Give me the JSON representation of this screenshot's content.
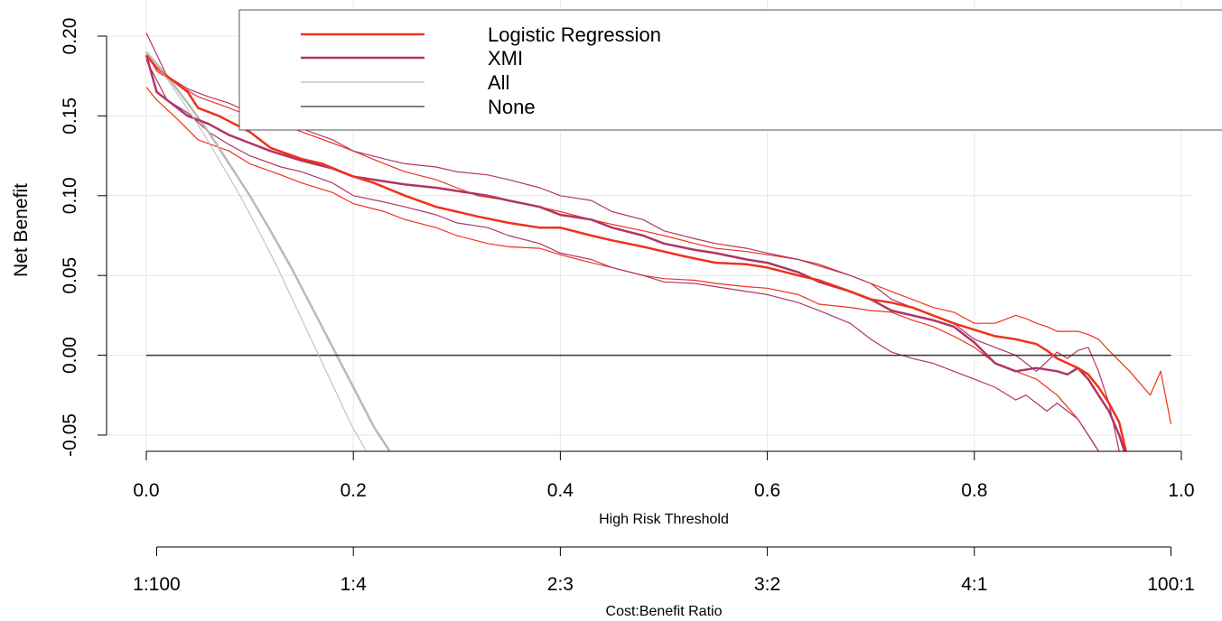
{
  "chart_data": {
    "type": "line",
    "title": "",
    "xlabel": "High Risk Threshold",
    "ylabel": "Net Benefit",
    "xlim": [
      0,
      1
    ],
    "ylim": [
      -0.05,
      0.2
    ],
    "x_ticks": [
      0.0,
      0.2,
      0.4,
      0.6,
      0.8,
      1.0
    ],
    "x_tick_labels": [
      "0.0",
      "0.2",
      "0.4",
      "0.6",
      "0.8",
      "1.0"
    ],
    "y_ticks": [
      0.2,
      0.15,
      0.1,
      0.05,
      0.0,
      -0.05
    ],
    "y_tick_labels": [
      "0.20",
      "0.15",
      "0.10",
      "0.05",
      "0.00",
      "-0.05"
    ],
    "grid": true,
    "legend_position": "top-right",
    "secondary_axis": {
      "label": "Cost:Benefit Ratio",
      "ticks": [
        0.01,
        0.2,
        0.4,
        0.6,
        0.8,
        0.99
      ],
      "tick_labels": [
        "1:100",
        "1:4",
        "2:3",
        "3:2",
        "4:1",
        "100:1"
      ]
    },
    "series": [
      {
        "name": "Logistic Regression",
        "color": "#f0311b",
        "width": 2.5,
        "x": [
          0.0,
          0.01,
          0.02,
          0.04,
          0.05,
          0.07,
          0.1,
          0.12,
          0.15,
          0.17,
          0.2,
          0.22,
          0.25,
          0.28,
          0.3,
          0.32,
          0.35,
          0.38,
          0.4,
          0.43,
          0.45,
          0.48,
          0.5,
          0.52,
          0.55,
          0.58,
          0.6,
          0.63,
          0.65,
          0.68,
          0.7,
          0.72,
          0.74,
          0.76,
          0.78,
          0.8,
          0.82,
          0.84,
          0.86,
          0.87,
          0.88,
          0.89,
          0.9,
          0.91,
          0.92,
          0.93,
          0.94,
          0.95
        ],
        "y": [
          0.188,
          0.18,
          0.175,
          0.165,
          0.155,
          0.15,
          0.14,
          0.13,
          0.123,
          0.12,
          0.112,
          0.108,
          0.1,
          0.093,
          0.09,
          0.087,
          0.083,
          0.08,
          0.08,
          0.075,
          0.072,
          0.068,
          0.065,
          0.062,
          0.058,
          0.057,
          0.055,
          0.05,
          0.047,
          0.04,
          0.035,
          0.033,
          0.03,
          0.025,
          0.02,
          0.016,
          0.012,
          0.01,
          0.007,
          0.003,
          -0.002,
          -0.005,
          -0.008,
          -0.012,
          -0.02,
          -0.03,
          -0.042,
          -0.07
        ]
      },
      {
        "name": "XMI",
        "color": "#b03566",
        "width": 2.5,
        "x": [
          0.0,
          0.01,
          0.02,
          0.04,
          0.06,
          0.08,
          0.1,
          0.12,
          0.15,
          0.18,
          0.2,
          0.23,
          0.25,
          0.28,
          0.3,
          0.33,
          0.35,
          0.38,
          0.4,
          0.43,
          0.45,
          0.48,
          0.5,
          0.53,
          0.55,
          0.58,
          0.6,
          0.63,
          0.65,
          0.68,
          0.7,
          0.72,
          0.74,
          0.76,
          0.78,
          0.8,
          0.82,
          0.84,
          0.86,
          0.88,
          0.89,
          0.9,
          0.91,
          0.92,
          0.93,
          0.94,
          0.95
        ],
        "y": [
          0.188,
          0.165,
          0.16,
          0.15,
          0.145,
          0.138,
          0.133,
          0.128,
          0.122,
          0.117,
          0.112,
          0.109,
          0.107,
          0.105,
          0.103,
          0.1,
          0.097,
          0.093,
          0.088,
          0.085,
          0.08,
          0.075,
          0.07,
          0.066,
          0.064,
          0.06,
          0.058,
          0.052,
          0.046,
          0.04,
          0.035,
          0.028,
          0.025,
          0.022,
          0.018,
          0.008,
          -0.005,
          -0.01,
          -0.008,
          -0.01,
          -0.012,
          -0.008,
          -0.015,
          -0.025,
          -0.035,
          -0.05,
          -0.07
        ]
      },
      {
        "name": "All",
        "color": "#b9b9b9",
        "width": 2.5,
        "x": [
          0.0,
          0.02,
          0.04,
          0.06,
          0.08,
          0.1,
          0.12,
          0.14,
          0.16,
          0.18,
          0.2,
          0.22,
          0.235
        ],
        "y": [
          0.19,
          0.175,
          0.158,
          0.14,
          0.12,
          0.1,
          0.078,
          0.055,
          0.03,
          0.005,
          -0.02,
          -0.045,
          -0.06
        ]
      },
      {
        "name": "None",
        "color": "#333333",
        "width": 1.5,
        "x": [
          0.0,
          0.99
        ],
        "y": [
          0.0,
          0.0
        ]
      }
    ],
    "confidence_bands": [
      {
        "color": "#f0311b",
        "x": [
          0.0,
          0.01,
          0.03,
          0.05,
          0.08,
          0.1,
          0.13,
          0.15,
          0.18,
          0.2,
          0.23,
          0.25,
          0.28,
          0.3,
          0.32,
          0.35,
          0.38,
          0.4,
          0.43,
          0.45,
          0.48,
          0.5,
          0.53,
          0.55,
          0.58,
          0.6,
          0.63,
          0.65,
          0.68,
          0.7,
          0.72,
          0.74,
          0.76,
          0.78,
          0.8,
          0.82,
          0.84,
          0.85,
          0.86,
          0.87,
          0.88,
          0.9,
          0.91,
          0.92,
          0.93,
          0.95,
          0.97,
          0.98,
          0.99
        ],
        "y": [
          0.19,
          0.178,
          0.17,
          0.162,
          0.155,
          0.15,
          0.145,
          0.14,
          0.133,
          0.128,
          0.12,
          0.115,
          0.11,
          0.105,
          0.1,
          0.097,
          0.093,
          0.09,
          0.085,
          0.082,
          0.078,
          0.075,
          0.07,
          0.067,
          0.065,
          0.063,
          0.06,
          0.057,
          0.05,
          0.045,
          0.04,
          0.035,
          0.03,
          0.027,
          0.02,
          0.02,
          0.025,
          0.023,
          0.02,
          0.018,
          0.015,
          0.015,
          0.013,
          0.01,
          0.003,
          -0.01,
          -0.025,
          -0.01,
          -0.043
        ]
      },
      {
        "color": "#f0311b",
        "x": [
          0.0,
          0.01,
          0.03,
          0.05,
          0.08,
          0.1,
          0.13,
          0.15,
          0.18,
          0.2,
          0.23,
          0.25,
          0.28,
          0.3,
          0.33,
          0.35,
          0.38,
          0.4,
          0.43,
          0.45,
          0.48,
          0.5,
          0.53,
          0.55,
          0.58,
          0.6,
          0.63,
          0.65,
          0.68,
          0.7,
          0.72,
          0.74,
          0.76,
          0.78,
          0.8,
          0.82,
          0.84,
          0.86,
          0.88,
          0.9,
          0.91,
          0.92
        ],
        "y": [
          0.168,
          0.16,
          0.148,
          0.135,
          0.128,
          0.12,
          0.113,
          0.108,
          0.102,
          0.095,
          0.09,
          0.085,
          0.08,
          0.075,
          0.07,
          0.068,
          0.067,
          0.063,
          0.058,
          0.055,
          0.05,
          0.048,
          0.047,
          0.045,
          0.043,
          0.042,
          0.038,
          0.032,
          0.03,
          0.028,
          0.027,
          0.022,
          0.018,
          0.012,
          0.005,
          -0.005,
          -0.01,
          -0.015,
          -0.025,
          -0.04,
          -0.05,
          -0.06
        ]
      },
      {
        "color": "#b03566",
        "x": [
          0.0,
          0.02,
          0.04,
          0.06,
          0.08,
          0.1,
          0.13,
          0.15,
          0.18,
          0.2,
          0.23,
          0.25,
          0.28,
          0.3,
          0.33,
          0.35,
          0.38,
          0.4,
          0.43,
          0.45,
          0.48,
          0.5,
          0.53,
          0.55,
          0.58,
          0.6,
          0.63,
          0.65,
          0.68,
          0.7,
          0.72,
          0.74,
          0.76,
          0.78,
          0.8,
          0.82,
          0.84,
          0.86,
          0.88,
          0.89,
          0.9,
          0.91,
          0.92,
          0.93,
          0.94
        ],
        "y": [
          0.202,
          0.175,
          0.167,
          0.162,
          0.158,
          0.152,
          0.147,
          0.142,
          0.135,
          0.128,
          0.123,
          0.12,
          0.118,
          0.115,
          0.113,
          0.11,
          0.105,
          0.1,
          0.097,
          0.09,
          0.085,
          0.078,
          0.073,
          0.07,
          0.067,
          0.064,
          0.06,
          0.056,
          0.05,
          0.045,
          0.035,
          0.03,
          0.025,
          0.02,
          0.01,
          0.005,
          0.0,
          -0.01,
          0.002,
          -0.002,
          0.003,
          0.005,
          -0.01,
          -0.03,
          -0.06
        ]
      },
      {
        "color": "#b03566",
        "x": [
          0.0,
          0.02,
          0.04,
          0.06,
          0.08,
          0.1,
          0.13,
          0.15,
          0.18,
          0.2,
          0.23,
          0.25,
          0.28,
          0.3,
          0.33,
          0.35,
          0.38,
          0.4,
          0.43,
          0.45,
          0.48,
          0.5,
          0.53,
          0.55,
          0.58,
          0.6,
          0.63,
          0.65,
          0.68,
          0.7,
          0.72,
          0.74,
          0.76,
          0.78,
          0.8,
          0.82,
          0.84,
          0.85,
          0.86,
          0.87,
          0.88,
          0.89,
          0.9,
          0.91,
          0.92
        ],
        "y": [
          0.185,
          0.16,
          0.152,
          0.14,
          0.132,
          0.125,
          0.118,
          0.115,
          0.108,
          0.1,
          0.096,
          0.093,
          0.088,
          0.083,
          0.08,
          0.075,
          0.07,
          0.064,
          0.06,
          0.055,
          0.05,
          0.046,
          0.045,
          0.043,
          0.04,
          0.038,
          0.033,
          0.028,
          0.02,
          0.01,
          0.002,
          -0.002,
          -0.005,
          -0.01,
          -0.015,
          -0.02,
          -0.028,
          -0.025,
          -0.03,
          -0.035,
          -0.03,
          -0.035,
          -0.04,
          -0.05,
          -0.06
        ]
      }
    ]
  }
}
